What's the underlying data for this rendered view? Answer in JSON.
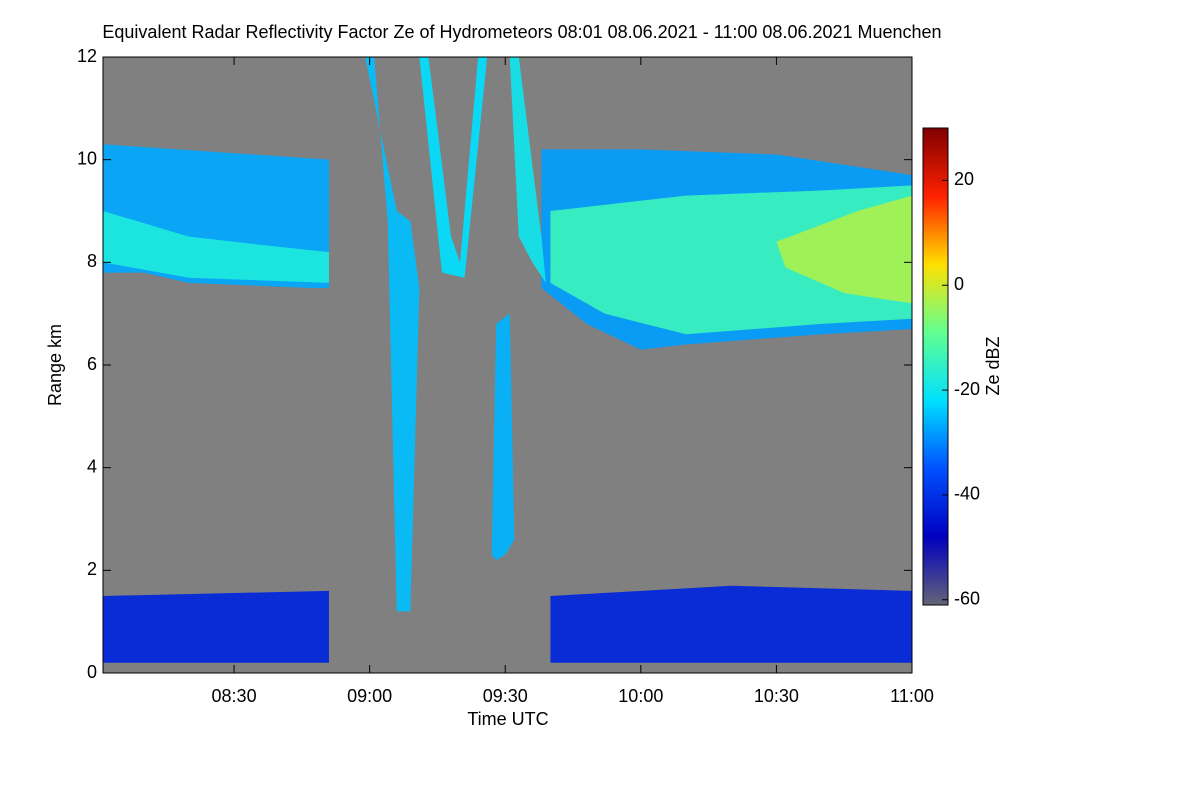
{
  "chart_data": {
    "type": "heatmap",
    "title": "Equivalent Radar Reflectivity Factor Ze of Hydrometeors   08:01 08.06.2021 - 11:00 08.06.2021 Muenchen",
    "x_label": "Time UTC",
    "y_label": "Range km",
    "colorbar_label": "Ze dBZ",
    "xlim": [
      481,
      660
    ],
    "xticks": [
      {
        "value": 510,
        "label": "08:30"
      },
      {
        "value": 540,
        "label": "09:00"
      },
      {
        "value": 570,
        "label": "09:30"
      },
      {
        "value": 600,
        "label": "10:00"
      },
      {
        "value": 630,
        "label": "10:30"
      },
      {
        "value": 660,
        "label": "11:00"
      }
    ],
    "ylim": [
      0,
      12
    ],
    "yticks": [
      0,
      2,
      4,
      6,
      8,
      10,
      12
    ],
    "clim": [
      -61,
      30
    ],
    "cticks": [
      -60,
      -40,
      -20,
      0,
      20
    ],
    "colormap": [
      "#646478",
      "#0000c0",
      "#0050ff",
      "#00e0ff",
      "#60ff90",
      "#ffe000",
      "#ff2000",
      "#800000"
    ],
    "background": "#808080",
    "regions": [
      {
        "value": -27,
        "x": [
          481,
          531,
          531,
          527,
          500,
          490,
          481
        ],
        "y": [
          10.3,
          10.0,
          7.5,
          7.5,
          7.6,
          7.8,
          7.8
        ]
      },
      {
        "value": -18,
        "x": [
          481,
          500,
          520,
          531,
          531,
          500,
          481
        ],
        "y": [
          9.0,
          8.5,
          8.3,
          8.2,
          7.6,
          7.7,
          8.0
        ]
      },
      {
        "value": -28,
        "x": [
          578,
          600,
          630,
          660,
          660,
          640,
          610,
          600,
          588,
          578
        ],
        "y": [
          10.2,
          10.2,
          10.1,
          9.7,
          6.7,
          6.6,
          6.4,
          6.3,
          6.8,
          7.5
        ]
      },
      {
        "value": -14,
        "x": [
          580,
          610,
          640,
          660,
          660,
          640,
          610,
          592,
          580
        ],
        "y": [
          9.0,
          9.3,
          9.4,
          9.5,
          6.9,
          6.8,
          6.6,
          7.0,
          7.6
        ]
      },
      {
        "value": -3,
        "x": [
          630,
          648,
          660,
          660,
          645,
          632
        ],
        "y": [
          8.4,
          9.0,
          9.3,
          7.2,
          7.4,
          7.9
        ]
      },
      {
        "value": -25,
        "x": [
          539,
          541,
          544,
          546,
          549,
          551,
          549,
          546
        ],
        "y": [
          12,
          12,
          8.8,
          1.2,
          1.2,
          7.5,
          8.8,
          9.0
        ]
      },
      {
        "value": -22,
        "x": [
          551,
          553,
          558,
          560,
          564,
          566,
          561,
          556
        ],
        "y": [
          12,
          12,
          8.5,
          8.0,
          12,
          12,
          7.7,
          7.8
        ]
      },
      {
        "value": -20,
        "x": [
          571,
          573,
          578,
          579,
          576,
          573
        ],
        "y": [
          12,
          12,
          8.5,
          7.6,
          8.0,
          8.5
        ]
      },
      {
        "value": -26,
        "x": [
          567,
          568,
          571,
          572,
          570,
          568
        ],
        "y": [
          2.3,
          6.8,
          7.0,
          2.6,
          2.3,
          2.2
        ]
      },
      {
        "value": -42,
        "x": [
          481,
          531,
          531,
          481
        ],
        "y": [
          1.5,
          1.6,
          0.2,
          0.2
        ]
      },
      {
        "value": -42,
        "x": [
          580,
          620,
          660,
          660,
          580
        ],
        "y": [
          1.5,
          1.7,
          1.6,
          0.2,
          0.2
        ]
      }
    ]
  }
}
